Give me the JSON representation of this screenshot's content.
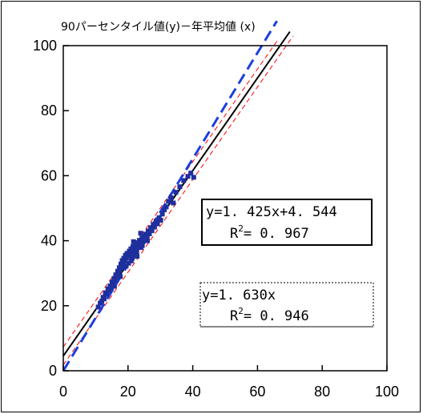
{
  "chart_data": {
    "type": "scatter",
    "title": "90パーセンタイル値(y)－年平均値 (x)",
    "xlabel": "",
    "ylabel": "",
    "xlim": [
      0,
      100
    ],
    "ylim": [
      0,
      100
    ],
    "xticks": [
      "0",
      "20",
      "40",
      "60",
      "80",
      "100"
    ],
    "yticks": [
      "0",
      "20",
      "40",
      "60",
      "80",
      "100"
    ],
    "grid": false,
    "colors": {
      "points": "#1f2f9c",
      "fit_line": "#000000",
      "origin_line": "#1a3fe0",
      "confidence": "#ff0000"
    },
    "fit_line": {
      "slope": 1.425,
      "intercept": 4.544,
      "x_range": [
        0,
        70
      ]
    },
    "origin_line": {
      "slope": 1.63,
      "intercept": 0,
      "x_range": [
        0,
        66
      ]
    },
    "confidence_bands": [
      {
        "slope": 1.425,
        "intercept": 7.3,
        "x_range": [
          0,
          66
        ]
      },
      {
        "slope": 1.425,
        "intercept": 1.8,
        "x_range": [
          0,
          71
        ]
      }
    ],
    "points": [
      [
        10.8,
        19.6
      ],
      [
        11.4,
        20.8
      ],
      [
        11.9,
        21.4
      ],
      [
        12.3,
        22.6
      ],
      [
        12.6,
        22.1
      ],
      [
        13.0,
        24.0
      ],
      [
        13.4,
        23.5
      ],
      [
        13.8,
        25.2
      ],
      [
        14.2,
        24.6
      ],
      [
        14.5,
        26.1
      ],
      [
        14.9,
        25.7
      ],
      [
        15.1,
        27.3
      ],
      [
        15.4,
        26.6
      ],
      [
        15.7,
        28.4
      ],
      [
        16.0,
        27.9
      ],
      [
        16.2,
        29.5
      ],
      [
        16.5,
        28.8
      ],
      [
        16.8,
        30.6
      ],
      [
        17.0,
        30.0
      ],
      [
        17.3,
        31.7
      ],
      [
        17.5,
        30.9
      ],
      [
        17.8,
        32.8
      ],
      [
        18.0,
        31.9
      ],
      [
        18.2,
        33.9
      ],
      [
        18.5,
        33.0
      ],
      [
        18.7,
        34.6
      ],
      [
        19.0,
        33.8
      ],
      [
        19.2,
        35.5
      ],
      [
        19.5,
        34.7
      ],
      [
        19.7,
        36.1
      ],
      [
        20.0,
        35.3
      ],
      [
        20.2,
        33.1
      ],
      [
        20.4,
        36.8
      ],
      [
        20.6,
        35.9
      ],
      [
        20.9,
        37.5
      ],
      [
        21.1,
        36.4
      ],
      [
        21.3,
        34.6
      ],
      [
        21.5,
        38.2
      ],
      [
        21.8,
        37.0
      ],
      [
        22.0,
        35.8
      ],
      [
        22.2,
        38.9
      ],
      [
        22.5,
        37.8
      ],
      [
        22.7,
        36.6
      ],
      [
        23.0,
        39.4
      ],
      [
        23.2,
        38.4
      ],
      [
        23.5,
        40.1
      ],
      [
        23.7,
        39.0
      ],
      [
        24.0,
        37.9
      ],
      [
        24.3,
        40.8
      ],
      [
        24.6,
        39.6
      ],
      [
        24.9,
        41.4
      ],
      [
        25.2,
        40.3
      ],
      [
        25.5,
        42.0
      ],
      [
        25.9,
        41.2
      ],
      [
        26.2,
        43.0
      ],
      [
        26.6,
        42.1
      ],
      [
        27.0,
        44.0
      ],
      [
        27.4,
        43.1
      ],
      [
        27.8,
        45.0
      ],
      [
        28.2,
        44.2
      ],
      [
        28.7,
        46.0
      ],
      [
        29.1,
        45.2
      ],
      [
        29.6,
        47.1
      ],
      [
        30.1,
        46.3
      ],
      [
        30.6,
        48.2
      ],
      [
        31.2,
        49.5
      ],
      [
        31.8,
        50.4
      ],
      [
        32.5,
        52.1
      ],
      [
        33.3,
        53.2
      ],
      [
        34.0,
        51.6
      ],
      [
        34.8,
        54.9
      ],
      [
        36.0,
        56.6
      ],
      [
        37.2,
        58.5
      ],
      [
        38.5,
        59.8
      ],
      [
        39.4,
        60.8
      ],
      [
        40.3,
        59.5
      ],
      [
        15.8,
        26.0
      ],
      [
        17.6,
        29.0
      ],
      [
        19.4,
        32.2
      ],
      [
        21.0,
        33.8
      ],
      [
        22.8,
        35.2
      ],
      [
        24.4,
        38.5
      ],
      [
        26.0,
        40.0
      ],
      [
        23.9,
        42.3
      ],
      [
        21.7,
        39.7
      ]
    ]
  },
  "annotations": {
    "box1": {
      "line1": "y=1. 425x+4. 544",
      "r2_prefix": "R",
      "r2_sup": "2",
      "r2_value": "=  0. 967"
    },
    "box2": {
      "line1": "y=1. 630x",
      "r2_prefix": "R",
      "r2_sup": "2",
      "r2_value": "=  0. 946"
    }
  }
}
